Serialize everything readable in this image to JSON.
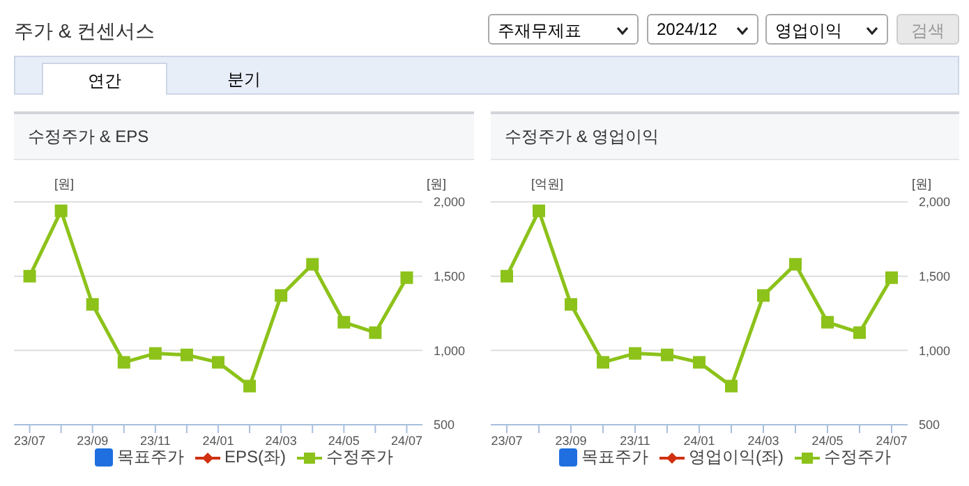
{
  "chart_data": [
    {
      "type": "line",
      "title": "수정주가 & EPS",
      "annotations": [
        "주가 & 컨센서스",
        "주재무제표",
        "2024/12",
        "영업이익",
        "검색",
        "연간",
        "분기"
      ],
      "ylabel": "[원]",
      "y2label": "[원]",
      "categories": [
        "23/07",
        null,
        "23/09",
        null,
        "23/11",
        null,
        "24/01",
        null,
        "24/03",
        null,
        "24/05",
        null,
        "24/07"
      ],
      "y2lim": [
        500,
        2000
      ],
      "y2ticks": [
        {
          "value": 500,
          "label": "500"
        },
        {
          "value": 1000,
          "label": "1,000"
        },
        {
          "value": 1500,
          "label": "1,500"
        },
        {
          "value": 2000,
          "label": "2,000"
        }
      ],
      "grid": "y",
      "legend": "bottom",
      "series": [
        {
          "name": "목표주가",
          "type": "bar",
          "color": "#1f6fe0",
          "marker": "square",
          "values": [
            null,
            null,
            null,
            null,
            null,
            null,
            null,
            null,
            null,
            null,
            null,
            null,
            null
          ]
        },
        {
          "name": "EPS(좌)",
          "type": "line",
          "color": "#d0300f",
          "marker": "diamond",
          "values": [
            null,
            null,
            null,
            null,
            null,
            null,
            null,
            null,
            null,
            null,
            null,
            null,
            null
          ]
        },
        {
          "name": "수정주가",
          "axis": "y2",
          "color": "#8cc21a",
          "marker": "square",
          "values": [
            1500,
            1940,
            1310,
            920,
            980,
            970,
            920,
            760,
            1370,
            1580,
            1190,
            1120,
            1490
          ]
        }
      ]
    },
    {
      "type": "line",
      "title": "수정주가 & 영업이익",
      "ylabel": "[억원]",
      "y2label": "[원]",
      "categories": [
        "23/07",
        null,
        "23/09",
        null,
        "23/11",
        null,
        "24/01",
        null,
        "24/03",
        null,
        "24/05",
        null,
        "24/07"
      ],
      "y2lim": [
        500,
        2000
      ],
      "y2ticks": [
        {
          "value": 500,
          "label": "500"
        },
        {
          "value": 1000,
          "label": "1,000"
        },
        {
          "value": 1500,
          "label": "1,500"
        },
        {
          "value": 2000,
          "label": "2,000"
        }
      ],
      "grid": "y",
      "legend": "bottom",
      "series": [
        {
          "name": "목표주가",
          "type": "bar",
          "color": "#1f6fe0",
          "marker": "square",
          "values": [
            null,
            null,
            null,
            null,
            null,
            null,
            null,
            null,
            null,
            null,
            null,
            null,
            null
          ]
        },
        {
          "name": "영업이익(좌)",
          "type": "line",
          "color": "#d0300f",
          "marker": "diamond",
          "values": [
            null,
            null,
            null,
            null,
            null,
            null,
            null,
            null,
            null,
            null,
            null,
            null,
            null
          ]
        },
        {
          "name": "수정주가",
          "axis": "y2",
          "color": "#8cc21a",
          "marker": "square",
          "values": [
            1500,
            1940,
            1310,
            920,
            980,
            970,
            920,
            760,
            1370,
            1580,
            1190,
            1120,
            1490
          ]
        }
      ]
    }
  ]
}
